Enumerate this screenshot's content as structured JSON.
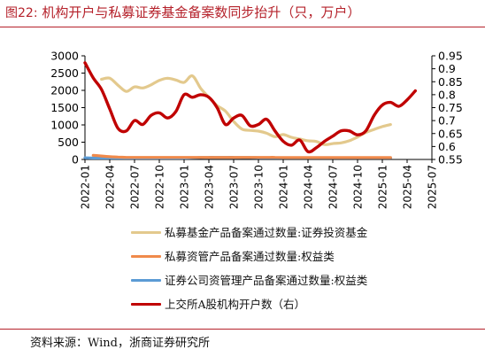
{
  "figure": {
    "title_prefix": "图22:",
    "title_text": "机构开户与私募证券基金备案数同步抬升（只，万户）",
    "source": "资料来源：Wind，浙商证券研究所"
  },
  "colors": {
    "accent": "#b5222b",
    "series": [
      "#e3c98d",
      "#f08a4b",
      "#5b9bd5",
      "#c00000"
    ]
  },
  "chart_data": {
    "type": "line",
    "x": [
      "2022-01",
      "2022-02",
      "2022-03",
      "2022-04",
      "2022-05",
      "2022-06",
      "2022-07",
      "2022-08",
      "2022-09",
      "2022-10",
      "2022-11",
      "2022-12",
      "2023-01",
      "2023-02",
      "2023-03",
      "2023-04",
      "2023-05",
      "2023-06",
      "2023-07",
      "2023-08",
      "2023-09",
      "2023-10",
      "2023-11",
      "2023-12",
      "2024-01",
      "2024-02",
      "2024-03",
      "2024-04",
      "2024-05",
      "2024-06",
      "2024-07",
      "2024-08",
      "2024-09",
      "2024-10",
      "2024-11",
      "2024-12",
      "2025-01",
      "2025-02",
      "2025-03",
      "2025-04",
      "2025-05",
      "2025-06",
      "2025-07"
    ],
    "x_tick_labels": [
      "2022-01",
      "2022-04",
      "2022-07",
      "2022-10",
      "2023-01",
      "2023-04",
      "2023-07",
      "2023-10",
      "2024-01",
      "2024-04",
      "2024-07",
      "2024-10",
      "2025-01",
      "2025-04",
      "2025-07"
    ],
    "yleft": {
      "lim": [
        0,
        3000
      ],
      "ticks": [
        "0",
        "500",
        "1000",
        "1500",
        "2000",
        "2500",
        "3000"
      ]
    },
    "yright": {
      "lim": [
        0.55,
        0.95
      ],
      "ticks": [
        "0.55",
        "0.6",
        "0.65",
        "0.7",
        "0.75",
        "0.8",
        "0.85",
        "0.9",
        "0.95"
      ]
    },
    "grid": false,
    "legend_position": "bottom",
    "series": [
      {
        "name": "私募基金产品备案通过数量:证券投资基金",
        "axis": "left",
        "values": [
          null,
          null,
          2320,
          2350,
          2150,
          1970,
          2100,
          2070,
          2160,
          2290,
          2350,
          2300,
          2230,
          2420,
          2060,
          1800,
          1560,
          1400,
          1100,
          880,
          840,
          820,
          760,
          660,
          720,
          640,
          590,
          540,
          520,
          430,
          460,
          480,
          540,
          650,
          780,
          870,
          950,
          1010,
          null,
          null,
          null,
          null,
          null
        ]
      },
      {
        "name": "私募资管产品备案通过数量:权益类",
        "axis": "left",
        "values": [
          null,
          120,
          100,
          80,
          70,
          60,
          60,
          60,
          60,
          60,
          60,
          60,
          60,
          60,
          60,
          60,
          60,
          60,
          60,
          60,
          60,
          60,
          60,
          60,
          55,
          55,
          55,
          55,
          55,
          55,
          55,
          55,
          55,
          55,
          55,
          55,
          55,
          55,
          null,
          null,
          null,
          null,
          null
        ]
      },
      {
        "name": "证券公司资管理产品备案通过数量:权益类",
        "axis": "left",
        "values": [
          50,
          40,
          40,
          40,
          40,
          40,
          40,
          40,
          40,
          40,
          40,
          40,
          40,
          45,
          55,
          60,
          60,
          60,
          60,
          55,
          55,
          50,
          50,
          50,
          50,
          50,
          50,
          50,
          50,
          50,
          50,
          50,
          50,
          50,
          50,
          50,
          50,
          50,
          null,
          null,
          null,
          null,
          null
        ]
      },
      {
        "name": "上交所A股机构开户数（右）",
        "axis": "right",
        "values": [
          0.923,
          0.865,
          0.82,
          0.745,
          0.67,
          0.66,
          0.7,
          0.685,
          0.72,
          0.73,
          0.71,
          0.735,
          0.8,
          0.79,
          0.8,
          0.79,
          0.75,
          0.685,
          0.71,
          0.72,
          0.68,
          0.685,
          0.705,
          0.66,
          0.62,
          0.605,
          0.625,
          0.58,
          0.595,
          0.62,
          0.64,
          0.66,
          0.66,
          0.645,
          0.66,
          0.72,
          0.76,
          0.77,
          0.755,
          0.78,
          0.815,
          null,
          null
        ]
      }
    ]
  }
}
